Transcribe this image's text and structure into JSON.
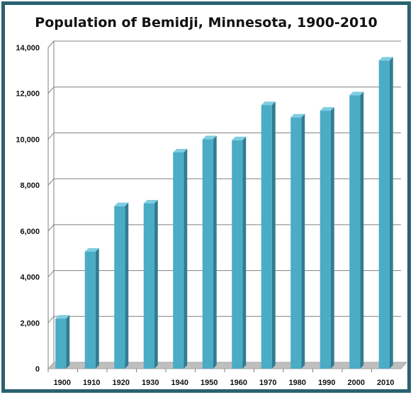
{
  "chart_data": {
    "type": "bar",
    "title": "Population of Bemidji, Minnesota, 1900-2010",
    "categories": [
      "1900",
      "1910",
      "1920",
      "1930",
      "1940",
      "1950",
      "1960",
      "1970",
      "1980",
      "1990",
      "2000",
      "2010"
    ],
    "values": [
      2183,
      5099,
      7086,
      7202,
      9427,
      10001,
      9958,
      11490,
      10949,
      11245,
      11917,
      13431
    ],
    "ylim": [
      0,
      14000
    ],
    "yticks": [
      0,
      2000,
      4000,
      6000,
      8000,
      10000,
      12000,
      14000
    ],
    "ytick_labels": [
      "0",
      "2,000",
      "4,000",
      "6,000",
      "8,000",
      "10,000",
      "12,000",
      "14,000"
    ],
    "grid": true,
    "legend": "none",
    "xlabel": "",
    "ylabel": ""
  },
  "colors": {
    "frame": "#2a6270",
    "bar_front": "#4bacc6",
    "bar_side": "#2f7d92",
    "bar_top": "#7fcde0",
    "floor": "#bfbfbf",
    "grid": "#7f7f7f"
  }
}
